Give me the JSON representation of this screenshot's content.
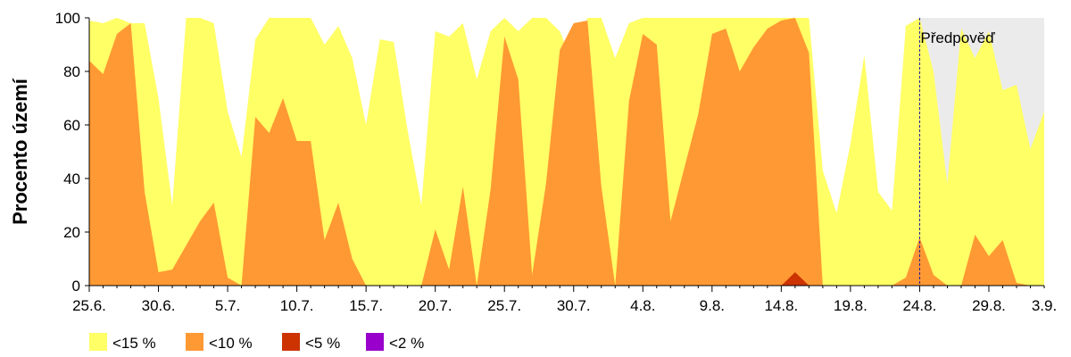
{
  "chart_data": {
    "type": "area",
    "title": "",
    "xlabel": "",
    "ylabel": "Procento území",
    "ylim": [
      0,
      100
    ],
    "yticks": [
      0,
      20,
      40,
      60,
      80,
      100
    ],
    "x_start": "25.6.",
    "x_end": "3.9.",
    "xtick_labels": [
      "25.6.",
      "30.6.",
      "5.7.",
      "10.7.",
      "15.7.",
      "20.7.",
      "25.7.",
      "30.7.",
      "4.8.",
      "9.8.",
      "14.8.",
      "19.8.",
      "24.8.",
      "29.8.",
      "3.9."
    ],
    "forecast_start": "24.8.",
    "forecast_label": "Předpověď",
    "grid": false,
    "legend_position": "bottom-left",
    "series": [
      {
        "name": "<15 %",
        "color": "#ffff66",
        "values": [
          99,
          98,
          100,
          98,
          98,
          70,
          30,
          100,
          100,
          98,
          65,
          48,
          92,
          100,
          100,
          100,
          100,
          90,
          97,
          85,
          60,
          92,
          91,
          58,
          30,
          95,
          93,
          98,
          77,
          95,
          100,
          95,
          100,
          100,
          95,
          82,
          100,
          100,
          85,
          98,
          100,
          100,
          100,
          100,
          100,
          100,
          100,
          100,
          100,
          100,
          100,
          100,
          100,
          43,
          27,
          53,
          86,
          35,
          28,
          97,
          100,
          80,
          38,
          96,
          85,
          95,
          73,
          75,
          51,
          65
        ]
      },
      {
        "name": "<10 %",
        "color": "#ff9933",
        "values": [
          84,
          79,
          94,
          98,
          35,
          5,
          6,
          15,
          24,
          31,
          3,
          0,
          63,
          57,
          70,
          54,
          54,
          17,
          31,
          10,
          0,
          0,
          0,
          0,
          0,
          21,
          6,
          37,
          0,
          36,
          93,
          77,
          4,
          38,
          88,
          98,
          99,
          37,
          0,
          69,
          94,
          90,
          24,
          44,
          64,
          94,
          96,
          80,
          89,
          96,
          99,
          100,
          87,
          0,
          0,
          0,
          0,
          0,
          0,
          3,
          18,
          4,
          0,
          0,
          19,
          11,
          17,
          1,
          0,
          0
        ]
      },
      {
        "name": "<5 %",
        "color": "#cc3300",
        "values": [
          0,
          0,
          0,
          0,
          0,
          0,
          0,
          0,
          0,
          0,
          0,
          0,
          0,
          0,
          0,
          0,
          0,
          0,
          0,
          0,
          0,
          0,
          0,
          0,
          0,
          0,
          0,
          0,
          0,
          0,
          0,
          0,
          0,
          0,
          0,
          0,
          0,
          0,
          0,
          0,
          0,
          0,
          0,
          0,
          0,
          0,
          0,
          0,
          0,
          0,
          0,
          5,
          0,
          0,
          0,
          0,
          0,
          0,
          0,
          0,
          0,
          0,
          0,
          0,
          0,
          0,
          0,
          0,
          0,
          0
        ]
      },
      {
        "name": "<2 %",
        "color": "#9900cc",
        "values": [
          0,
          0,
          0,
          0,
          0,
          0,
          0,
          0,
          0,
          0,
          0,
          0,
          0,
          0,
          0,
          0,
          0,
          0,
          0,
          0,
          0,
          0,
          0,
          0,
          0,
          0,
          0,
          0,
          0,
          0,
          0,
          0,
          0,
          0,
          0,
          0,
          0,
          0,
          0,
          0,
          0,
          0,
          0,
          0,
          0,
          0,
          0,
          0,
          0,
          0,
          0,
          0,
          0,
          0,
          0,
          0,
          0,
          0,
          0,
          0,
          0,
          0,
          0,
          0,
          0,
          0,
          0,
          0,
          0,
          0
        ]
      }
    ]
  }
}
